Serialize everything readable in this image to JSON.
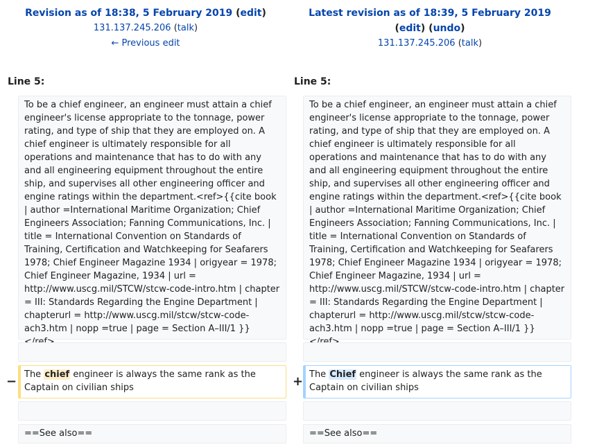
{
  "left_header": {
    "title": "Revision as of 18:38, 5 February 2019",
    "edit": "edit",
    "user": "131.137.245.206",
    "talk": "talk",
    "prev": "← Previous edit"
  },
  "right_header": {
    "title": "Latest revision as of 18:39, 5 February 2019",
    "edit": "edit",
    "undo": "undo",
    "user": "131.137.245.206",
    "talk": "talk"
  },
  "diff": {
    "line_left": "Line 5:",
    "line_right": "Line 5:",
    "context_paragraph": "To be a chief engineer, an engineer must attain a chief engineer's license appropriate to the tonnage, power rating, and type of ship that they are employed on. A chief engineer is ultimately responsible for all operations and maintenance that has to do with any and all engineering equipment throughout the entire ship, and supervises all other engineering officer and engine ratings within the department.<ref>{{cite book | author =International Maritime Organization; Chief Engineers Association; Fanning Communications, Inc. | title = International Convention on Standards of Training, Certification and Watchkeeping for Seafarers 1978; Chief Engineer Magazine 1934 | origyear = 1978; Chief Engineer Magazine, 1934 | url = http://www.uscg.mil/STCW/stcw-code-intro.htm | chapter = III: Standards Regarding the Engine Department | chapterurl = http://www.uscg.mil/stcw/stcw-code-ach3.htm | nopp =true | page = Section A–III/1 }}</ref>",
    "del_marker": "−",
    "add_marker": "+",
    "old_before": "The ",
    "old_changed": "chief",
    "old_after": " engineer is always the same rank as the Captain on civilian ships",
    "new_before": "The ",
    "new_changed": "Chief",
    "new_after": " engineer is always the same rank as the Captain on civilian ships",
    "see_also": "==See also=="
  }
}
